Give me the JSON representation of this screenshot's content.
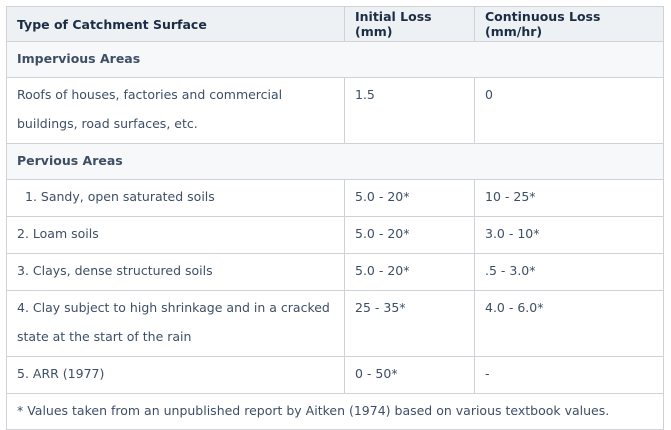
{
  "table": {
    "headers": [
      "Type of Catchment Surface",
      "Initial Loss (mm)",
      "Continuous Loss (mm/hr)"
    ],
    "sections": [
      {
        "title": "Impervious Areas",
        "rows": [
          {
            "surface": "Roofs of houses, factories and commercial buildings, road surfaces, etc.",
            "initial": "1.5",
            "continuous": "0"
          }
        ]
      },
      {
        "title": "Pervious Areas",
        "rows": [
          {
            "surface": "1. Sandy, open saturated soils",
            "initial": "5.0 - 20*",
            "continuous": "10 - 25*"
          },
          {
            "surface": "2. Loam soils",
            "initial": "5.0 - 20*",
            "continuous": "3.0 - 10*"
          },
          {
            "surface": "3. Clays, dense structured soils",
            "initial": "5.0 - 20*",
            "continuous": ".5 - 3.0*"
          },
          {
            "surface": "4. Clay subject to high shrinkage and in a cracked state at the start of the rain",
            "initial": "25 - 35*",
            "continuous": "4.0 - 6.0*"
          },
          {
            "surface": "5. ARR (1977)",
            "initial": "0 - 50*",
            "continuous": "-"
          }
        ]
      }
    ],
    "footnote": "* Values taken from an unpublished report by Aitken (1974) based on various textbook values."
  }
}
